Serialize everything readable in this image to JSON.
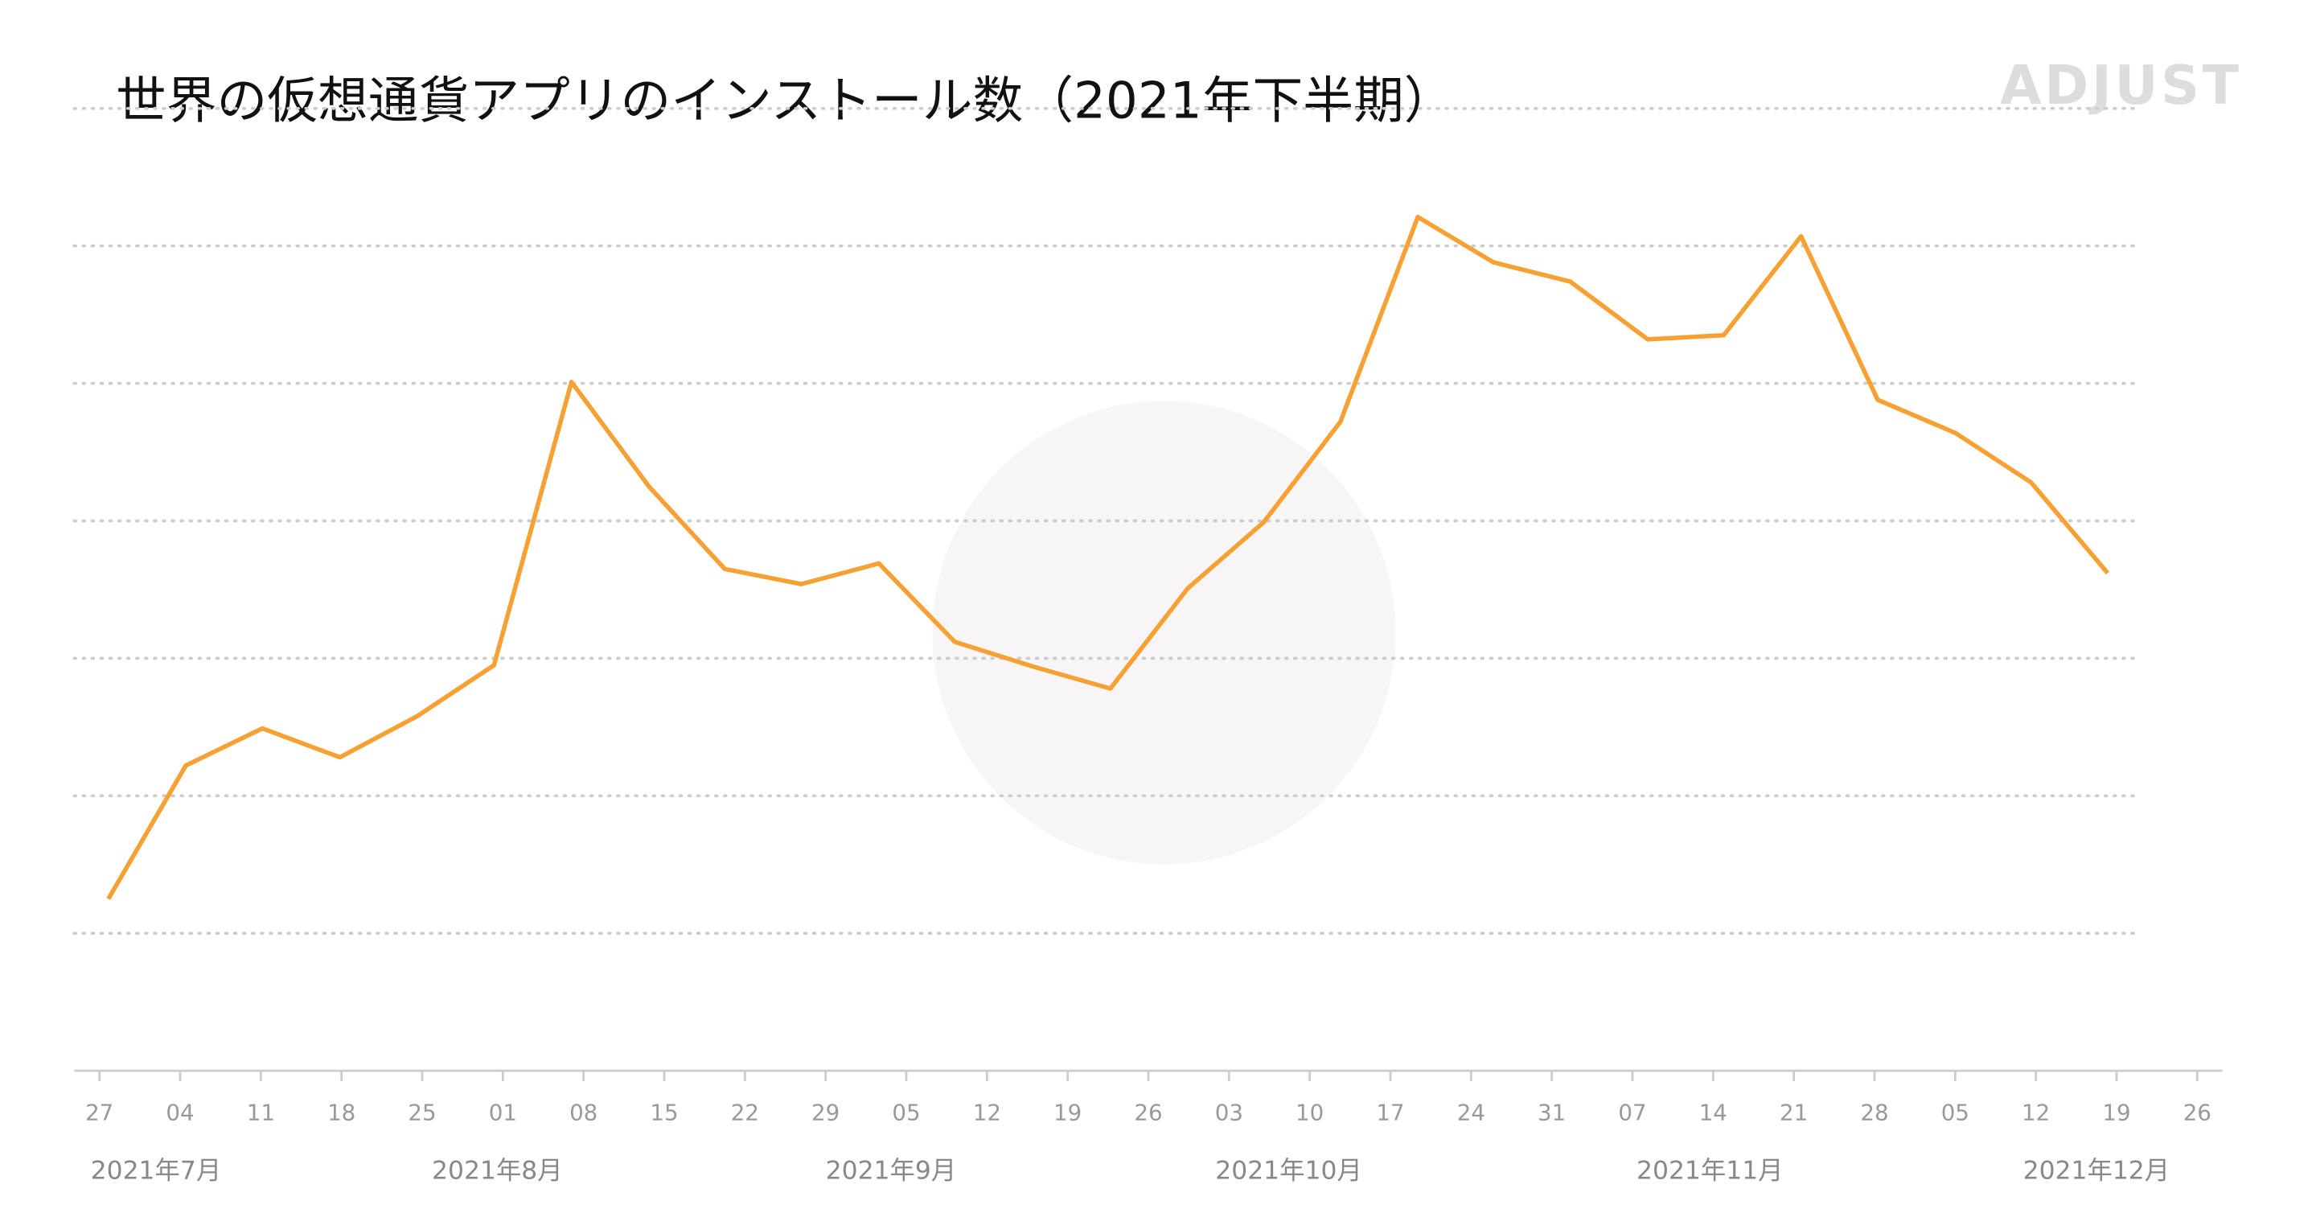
{
  "chart_data": {
    "type": "line",
    "title": "世界の仮想通貨アプリのインストール数（2021年下半期）",
    "brand": "ADJUST",
    "xlim": [
      0,
      26
    ],
    "xticks": [
      {
        "value": 0,
        "label": "27"
      },
      {
        "value": 1,
        "label": "04"
      },
      {
        "value": 2,
        "label": "11"
      },
      {
        "value": 3,
        "label": "18"
      },
      {
        "value": 4,
        "label": "25"
      },
      {
        "value": 5,
        "label": "01"
      },
      {
        "value": 6,
        "label": "08"
      },
      {
        "value": 7,
        "label": "15"
      },
      {
        "value": 8,
        "label": "22"
      },
      {
        "value": 9,
        "label": "29"
      },
      {
        "value": 10,
        "label": "05"
      },
      {
        "value": 11,
        "label": "12"
      },
      {
        "value": 12,
        "label": "19"
      },
      {
        "value": 13,
        "label": "26"
      },
      {
        "value": 14,
        "label": "03"
      },
      {
        "value": 15,
        "label": "10"
      },
      {
        "value": 16,
        "label": "17"
      },
      {
        "value": 17,
        "label": "24"
      },
      {
        "value": 18,
        "label": "31"
      },
      {
        "value": 19,
        "label": "07"
      },
      {
        "value": 20,
        "label": "14"
      },
      {
        "value": 21,
        "label": "21"
      },
      {
        "value": 22,
        "label": "28"
      },
      {
        "value": 23,
        "label": "05"
      },
      {
        "value": 24,
        "label": "12"
      },
      {
        "value": 25,
        "label": "19"
      },
      {
        "value": 26,
        "label": "26"
      }
    ],
    "month_labels": [
      {
        "value": 0.7,
        "label": "2021年7月"
      },
      {
        "value": 4.93,
        "label": "2021年8月"
      },
      {
        "value": 9.81,
        "label": "2021年9月"
      },
      {
        "value": 14.74,
        "label": "2021年10月"
      },
      {
        "value": 19.96,
        "label": "2021年11月"
      },
      {
        "value": 24.75,
        "label": "2021年12月"
      }
    ],
    "ylim": [
      0,
      7
    ],
    "yticks": [
      1,
      2,
      3,
      4,
      5,
      6,
      7
    ],
    "ytick_labels": false,
    "grid": true,
    "series": [
      {
        "color": "#f7a135",
        "x": [
          0.11,
          1.07,
          2.02,
          2.98,
          3.94,
          4.89,
          5.85,
          6.81,
          7.75,
          8.7,
          9.66,
          10.6,
          11.57,
          12.53,
          13.49,
          14.43,
          15.38,
          16.34,
          17.28,
          18.23,
          19.19,
          20.13,
          21.09,
          22.04,
          23.0,
          23.94,
          24.89
        ],
        "values": [
          1.25,
          2.22,
          2.49,
          2.28,
          2.58,
          2.95,
          5.01,
          4.25,
          3.65,
          3.54,
          3.69,
          3.12,
          2.94,
          2.78,
          3.51,
          3.99,
          4.72,
          6.21,
          5.88,
          5.74,
          5.32,
          5.35,
          6.07,
          4.88,
          4.64,
          4.28,
          3.62
        ]
      }
    ]
  }
}
